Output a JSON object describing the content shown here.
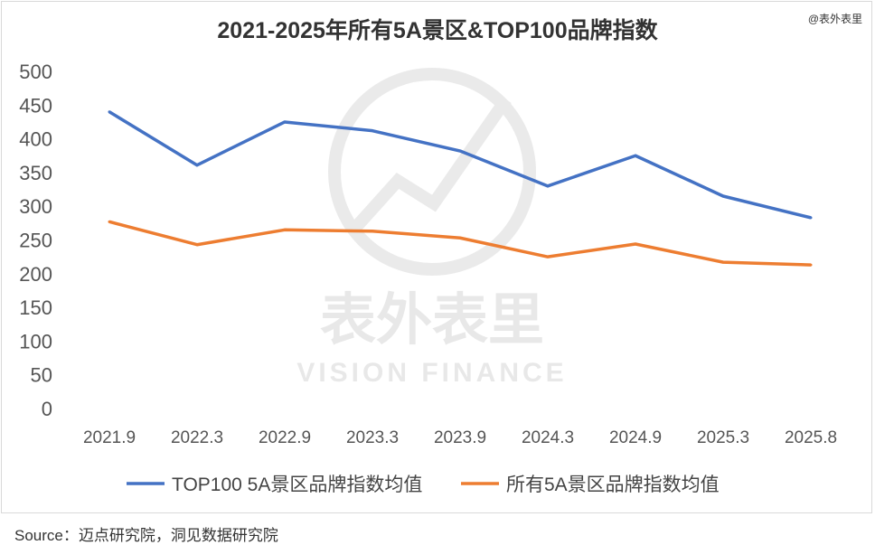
{
  "credit": "@表外表里",
  "source": "Source：迈点研究院，洞见数据研究院",
  "watermark": {
    "cn": "表外表里",
    "en": "VISION FINANCE"
  },
  "chart_data": {
    "type": "line",
    "title": "2021-2025年所有5A景区&TOP100品牌指数",
    "xlabel": "",
    "ylabel": "",
    "ylim": [
      0,
      500
    ],
    "yticks": [
      0,
      50,
      100,
      150,
      200,
      250,
      300,
      350,
      400,
      450,
      500
    ],
    "grid": false,
    "legend_position": "bottom",
    "categories": [
      "2021.9",
      "2022.3",
      "2022.9",
      "2023.3",
      "2023.9",
      "2024.3",
      "2024.9",
      "2025.3",
      "2025.8"
    ],
    "series": [
      {
        "name": "TOP100 5A景区品牌指数均值",
        "color": "#4472c4",
        "values": [
          440,
          361,
          425,
          412,
          382,
          330,
          375,
          315,
          283
        ]
      },
      {
        "name": "所有5A景区品牌指数均值",
        "color": "#ed7d31",
        "values": [
          277,
          243,
          265,
          263,
          253,
          225,
          244,
          217,
          213
        ]
      }
    ]
  }
}
